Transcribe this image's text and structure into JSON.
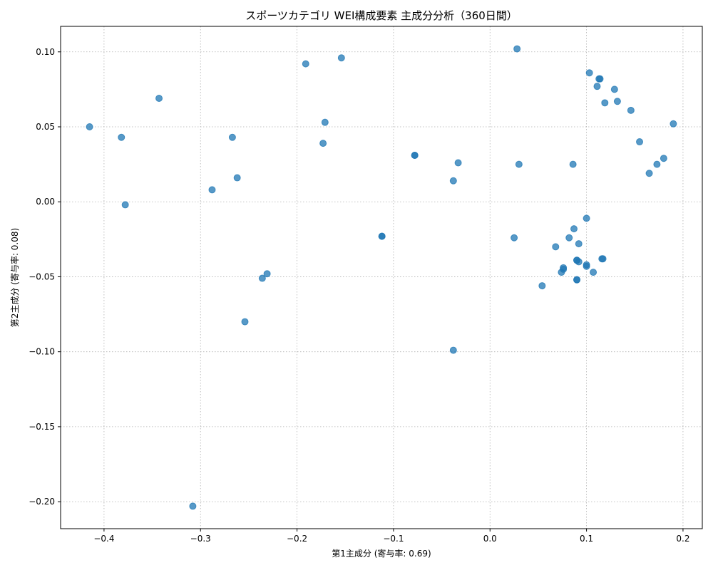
{
  "chart_data": {
    "type": "scatter",
    "title": "スポーツカテゴリ WEI構成要素 主成分分析（360日間）",
    "xlabel": "第1主成分 (寄与率: 0.69)",
    "ylabel": "第2主成分 (寄与率: 0.08)",
    "xlim": [
      -0.445,
      0.22
    ],
    "ylim": [
      -0.218,
      0.117
    ],
    "xticks": [
      -0.4,
      -0.3,
      -0.2,
      -0.1,
      0.0,
      0.1,
      0.2
    ],
    "xtick_labels": [
      "−0.4",
      "−0.3",
      "−0.2",
      "−0.1",
      "0.0",
      "0.1",
      "0.2"
    ],
    "yticks": [
      0.1,
      0.05,
      0.0,
      -0.05,
      -0.1,
      -0.15,
      -0.2
    ],
    "ytick_labels": [
      "0.10",
      "0.05",
      "0.00",
      "−0.05",
      "−0.10",
      "−0.15",
      "−0.20"
    ],
    "grid": true,
    "point_color": "#1f77b4",
    "point_opacity": 0.75,
    "points": [
      [
        -0.415,
        0.05
      ],
      [
        -0.382,
        0.043
      ],
      [
        -0.378,
        -0.002
      ],
      [
        -0.343,
        0.069
      ],
      [
        -0.308,
        -0.203
      ],
      [
        -0.288,
        0.008
      ],
      [
        -0.267,
        0.043
      ],
      [
        -0.262,
        0.016
      ],
      [
        -0.254,
        -0.08
      ],
      [
        -0.236,
        -0.051
      ],
      [
        -0.231,
        -0.048
      ],
      [
        -0.191,
        0.092
      ],
      [
        -0.173,
        0.039
      ],
      [
        -0.171,
        0.053
      ],
      [
        -0.154,
        0.096
      ],
      [
        -0.112,
        -0.023
      ],
      [
        -0.112,
        -0.023
      ],
      [
        -0.078,
        0.031
      ],
      [
        -0.078,
        0.031
      ],
      [
        -0.038,
        0.014
      ],
      [
        -0.038,
        -0.099
      ],
      [
        -0.033,
        0.026
      ],
      [
        0.025,
        -0.024
      ],
      [
        0.028,
        0.102
      ],
      [
        0.03,
        0.025
      ],
      [
        0.054,
        -0.056
      ],
      [
        0.068,
        -0.03
      ],
      [
        0.074,
        -0.047
      ],
      [
        0.076,
        -0.045
      ],
      [
        0.076,
        -0.044
      ],
      [
        0.082,
        -0.024
      ],
      [
        0.086,
        0.025
      ],
      [
        0.087,
        -0.018
      ],
      [
        0.09,
        -0.039
      ],
      [
        0.09,
        -0.039
      ],
      [
        0.09,
        -0.052
      ],
      [
        0.09,
        -0.052
      ],
      [
        0.092,
        -0.028
      ],
      [
        0.092,
        -0.04
      ],
      [
        0.1,
        -0.043
      ],
      [
        0.1,
        -0.042
      ],
      [
        0.1,
        -0.011
      ],
      [
        0.103,
        0.086
      ],
      [
        0.107,
        -0.047
      ],
      [
        0.111,
        0.077
      ],
      [
        0.113,
        0.082
      ],
      [
        0.114,
        0.082
      ],
      [
        0.116,
        -0.038
      ],
      [
        0.117,
        -0.038
      ],
      [
        0.119,
        0.066
      ],
      [
        0.129,
        0.075
      ],
      [
        0.132,
        0.067
      ],
      [
        0.146,
        0.061
      ],
      [
        0.155,
        0.04
      ],
      [
        0.165,
        0.019
      ],
      [
        0.173,
        0.025
      ],
      [
        0.18,
        0.029
      ],
      [
        0.19,
        0.052
      ]
    ]
  }
}
